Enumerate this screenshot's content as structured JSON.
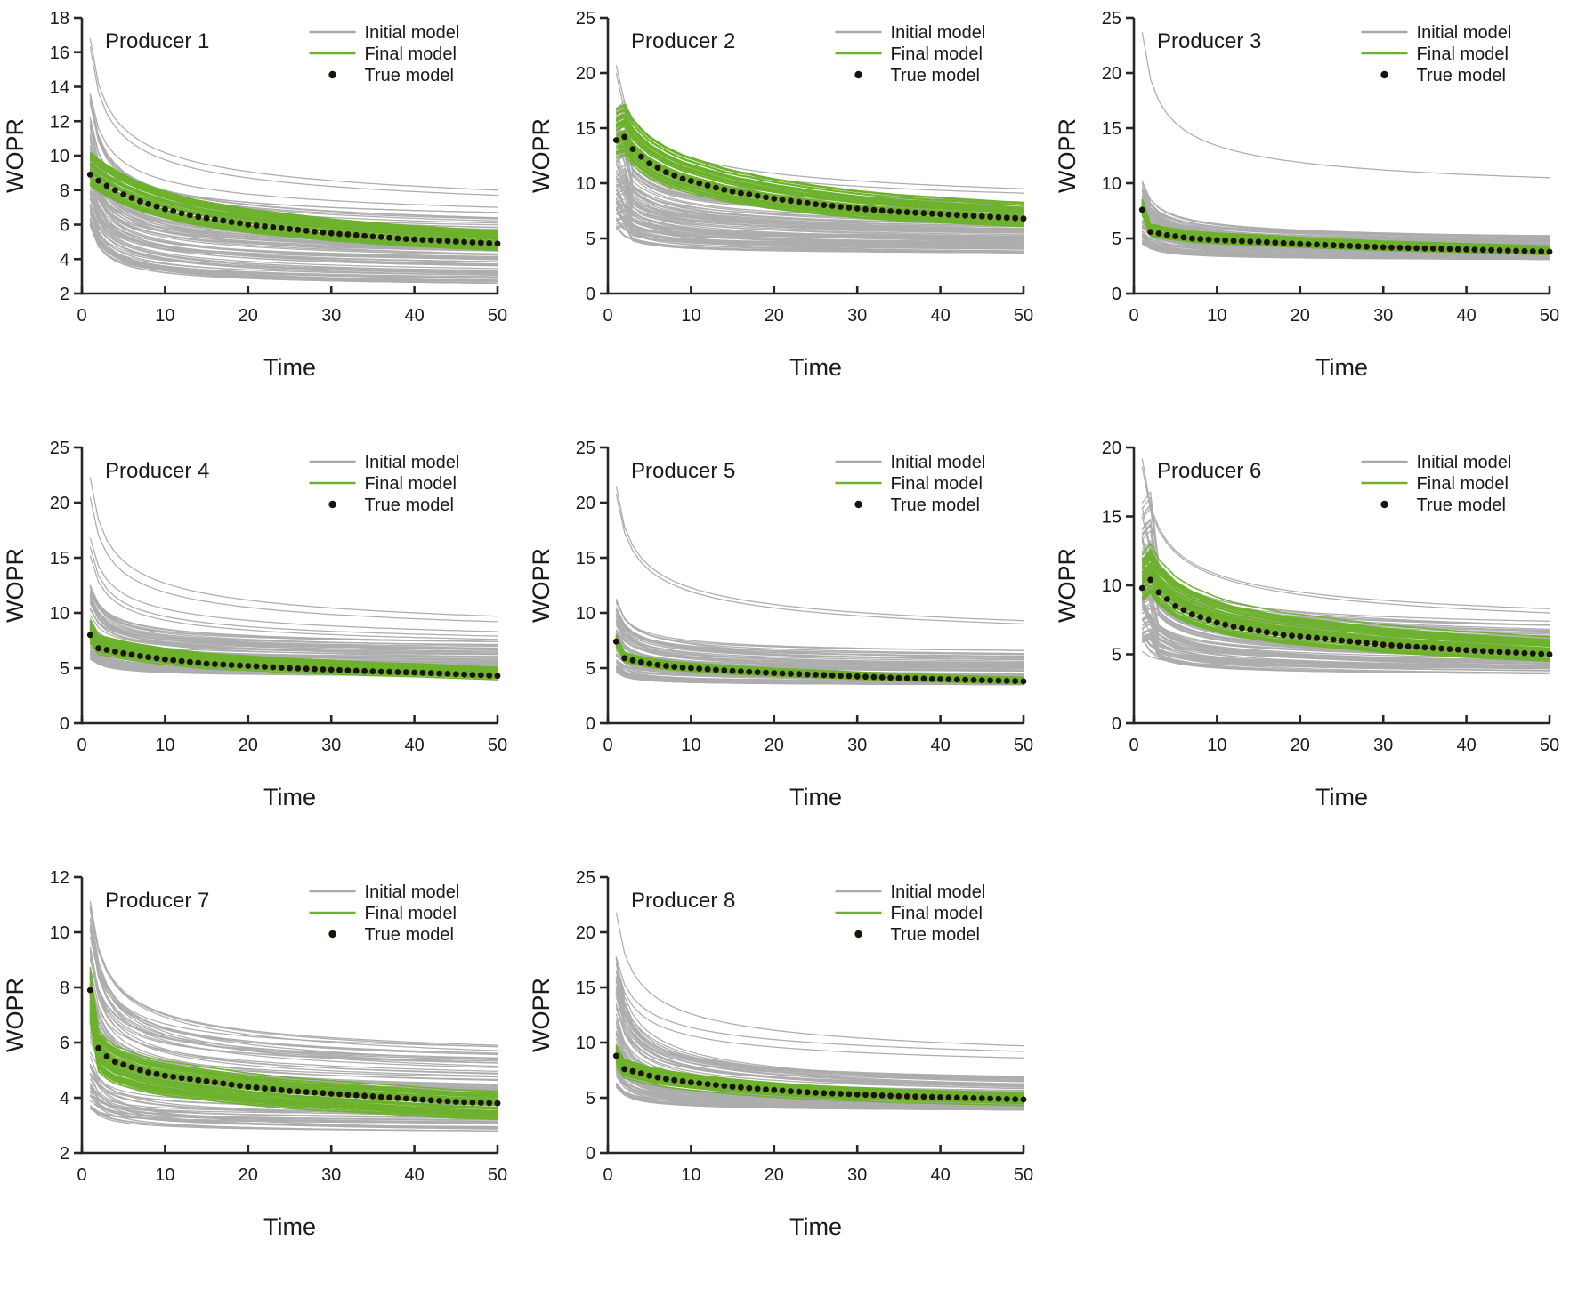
{
  "page": {
    "background": "#ffffff"
  },
  "colors": {
    "initial_model": "#a9a9a9",
    "final_model": "#6db22c",
    "true_model": "#1c130b",
    "axis": "#2a2521",
    "text": "#1a1a1a"
  },
  "legend_labels": [
    "Initial model",
    "Final model",
    "True model"
  ],
  "axis_labels": {
    "xlabel": "Time",
    "ylabel": "WOPR"
  },
  "chart_data": [
    {
      "type": "line",
      "title": "Producer 1",
      "xlabel": "Time",
      "ylabel": "WOPR",
      "xlim": [
        0,
        50
      ],
      "xticks": [
        0,
        10,
        20,
        30,
        40,
        50
      ],
      "ylim": [
        2,
        18
      ],
      "yticks": [
        2,
        4,
        6,
        8,
        10,
        12,
        14,
        16,
        18
      ],
      "grid": false,
      "legend_position": "top-right",
      "legend": [
        "Initial model",
        "Final model",
        "True model"
      ],
      "true_model": {
        "x_start": 1,
        "x_step": 1,
        "values": [
          8.9,
          8.55,
          8.25,
          8.0,
          7.75,
          7.55,
          7.35,
          7.2,
          7.05,
          6.9,
          6.78,
          6.65,
          6.55,
          6.45,
          6.38,
          6.3,
          6.23,
          6.15,
          6.08,
          6.0,
          5.95,
          5.9,
          5.85,
          5.8,
          5.75,
          5.7,
          5.65,
          5.6,
          5.55,
          5.5,
          5.46,
          5.43,
          5.39,
          5.35,
          5.31,
          5.28,
          5.24,
          5.2,
          5.17,
          5.15,
          5.12,
          5.1,
          5.07,
          5.05,
          5.02,
          5.0,
          4.97,
          4.95,
          4.92,
          4.9
        ]
      },
      "initial_ensemble": {
        "count": 85,
        "start_range": [
          5.9,
          13.6
        ],
        "end_range": [
          2.6,
          6.7
        ],
        "outliers": [
          [
            16.8,
            8.0
          ],
          [
            16.3,
            7.7
          ],
          [
            13.6,
            7.0
          ]
        ],
        "peak": false,
        "seed": 101
      },
      "final_ensemble": {
        "count": 45,
        "scale_range": [
          0.93,
          1.16
        ],
        "seed": 201
      }
    },
    {
      "type": "line",
      "title": "Producer 2",
      "xlabel": "Time",
      "ylabel": "WOPR",
      "xlim": [
        0,
        50
      ],
      "xticks": [
        0,
        10,
        20,
        30,
        40,
        50
      ],
      "ylim": [
        0,
        25
      ],
      "yticks": [
        0,
        5,
        10,
        15,
        20,
        25
      ],
      "grid": false,
      "legend_position": "top-right",
      "legend": [
        "Initial model",
        "Final model",
        "True model"
      ],
      "true_model": {
        "x_start": 1,
        "x_step": 1,
        "values": [
          13.9,
          14.2,
          13.1,
          12.4,
          11.8,
          11.4,
          11.0,
          10.7,
          10.4,
          10.2,
          10.0,
          9.8,
          9.6,
          9.4,
          9.25,
          9.1,
          9.0,
          8.85,
          8.72,
          8.6,
          8.5,
          8.4,
          8.3,
          8.2,
          8.1,
          8.02,
          7.94,
          7.86,
          7.78,
          7.7,
          7.64,
          7.58,
          7.52,
          7.46,
          7.4,
          7.36,
          7.32,
          7.28,
          7.24,
          7.2,
          7.16,
          7.12,
          7.08,
          7.04,
          7.0,
          6.96,
          6.92,
          6.88,
          6.84,
          6.8
        ]
      },
      "initial_ensemble": {
        "count": 85,
        "start_range": [
          5.9,
          17.6
        ],
        "end_range": [
          3.7,
          8.3
        ],
        "outliers": [
          [
            20.7,
            9.5
          ],
          [
            20.0,
            9.1
          ]
        ],
        "peak": true,
        "seed": 102
      },
      "final_ensemble": {
        "count": 45,
        "scale_range": [
          0.87,
          1.21
        ],
        "seed": 202
      }
    },
    {
      "type": "line",
      "title": "Producer 3",
      "xlabel": "Time",
      "ylabel": "WOPR",
      "xlim": [
        0,
        50
      ],
      "xticks": [
        0,
        10,
        20,
        30,
        40,
        50
      ],
      "ylim": [
        0,
        25
      ],
      "yticks": [
        0,
        5,
        10,
        15,
        20,
        25
      ],
      "grid": false,
      "legend_position": "top-right",
      "legend": [
        "Initial model",
        "Final model",
        "True model"
      ],
      "true_model": {
        "x_start": 1,
        "x_step": 1,
        "values": [
          7.6,
          5.6,
          5.45,
          5.3,
          5.2,
          5.1,
          5.0,
          4.95,
          4.9,
          4.85,
          4.82,
          4.78,
          4.75,
          4.72,
          4.7,
          4.66,
          4.62,
          4.58,
          4.54,
          4.5,
          4.47,
          4.44,
          4.41,
          4.38,
          4.35,
          4.32,
          4.29,
          4.26,
          4.23,
          4.2,
          4.18,
          4.16,
          4.14,
          4.12,
          4.1,
          4.08,
          4.06,
          4.04,
          4.02,
          4.0,
          3.98,
          3.96,
          3.94,
          3.92,
          3.9,
          3.88,
          3.86,
          3.84,
          3.82,
          3.8
        ]
      },
      "initial_ensemble": {
        "count": 85,
        "start_range": [
          4.5,
          10.5
        ],
        "end_range": [
          3.1,
          5.6
        ],
        "outliers": [
          [
            23.7,
            10.5
          ]
        ],
        "peak": false,
        "seed": 103
      },
      "final_ensemble": {
        "count": 45,
        "scale_range": [
          0.94,
          1.12
        ],
        "seed": 203
      }
    },
    {
      "type": "line",
      "title": "Producer 4",
      "xlabel": "Time",
      "ylabel": "WOPR",
      "xlim": [
        0,
        50
      ],
      "xticks": [
        0,
        10,
        20,
        30,
        40,
        50
      ],
      "ylim": [
        0,
        25
      ],
      "yticks": [
        0,
        5,
        10,
        15,
        20,
        25
      ],
      "grid": false,
      "legend_position": "top-right",
      "legend": [
        "Initial model",
        "Final model",
        "True model"
      ],
      "true_model": {
        "x_start": 1,
        "x_step": 1,
        "values": [
          8.0,
          6.8,
          6.65,
          6.5,
          6.35,
          6.22,
          6.1,
          6.0,
          5.9,
          5.8,
          5.72,
          5.64,
          5.56,
          5.48,
          5.4,
          5.36,
          5.32,
          5.28,
          5.24,
          5.2,
          5.16,
          5.12,
          5.08,
          5.04,
          5.0,
          4.97,
          4.94,
          4.91,
          4.88,
          4.85,
          4.82,
          4.79,
          4.76,
          4.73,
          4.7,
          4.68,
          4.66,
          4.64,
          4.62,
          4.6,
          4.57,
          4.54,
          4.51,
          4.48,
          4.45,
          4.42,
          4.39,
          4.36,
          4.33,
          4.3
        ]
      },
      "initial_ensemble": {
        "count": 85,
        "start_range": [
          5.8,
          12.6
        ],
        "end_range": [
          4.3,
          7.4
        ],
        "outliers": [
          [
            22.3,
            9.7
          ],
          [
            20.5,
            9.2
          ],
          [
            16.8,
            8.3
          ],
          [
            16.0,
            7.9
          ],
          [
            15.2,
            7.6
          ]
        ],
        "peak": false,
        "seed": 104
      },
      "final_ensemble": {
        "count": 45,
        "scale_range": [
          0.92,
          1.17
        ],
        "seed": 204
      }
    },
    {
      "type": "line",
      "title": "Producer 5",
      "xlabel": "Time",
      "ylabel": "WOPR",
      "xlim": [
        0,
        50
      ],
      "xticks": [
        0,
        10,
        20,
        30,
        40,
        50
      ],
      "ylim": [
        0,
        25
      ],
      "yticks": [
        0,
        5,
        10,
        15,
        20,
        25
      ],
      "grid": false,
      "legend_position": "top-right",
      "legend": [
        "Initial model",
        "Final model",
        "True model"
      ],
      "true_model": {
        "x_start": 1,
        "x_step": 1,
        "values": [
          7.4,
          5.9,
          5.7,
          5.55,
          5.4,
          5.3,
          5.2,
          5.12,
          5.06,
          5.0,
          4.95,
          4.9,
          4.85,
          4.8,
          4.75,
          4.71,
          4.67,
          4.63,
          4.59,
          4.55,
          4.52,
          4.49,
          4.46,
          4.43,
          4.4,
          4.37,
          4.34,
          4.31,
          4.28,
          4.25,
          4.22,
          4.19,
          4.16,
          4.13,
          4.1,
          4.08,
          4.06,
          4.04,
          4.02,
          4.0,
          3.98,
          3.96,
          3.94,
          3.92,
          3.9,
          3.88,
          3.86,
          3.84,
          3.82,
          3.8
        ]
      },
      "initial_ensemble": {
        "count": 85,
        "start_range": [
          4.6,
          11.8
        ],
        "end_range": [
          3.5,
          6.6
        ],
        "outliers": [
          [
            21.5,
            9.3
          ],
          [
            20.8,
            9.0
          ]
        ],
        "peak": false,
        "seed": 105
      },
      "final_ensemble": {
        "count": 45,
        "scale_range": [
          0.94,
          1.08
        ],
        "seed": 205
      }
    },
    {
      "type": "line",
      "title": "Producer 6",
      "xlabel": "Time",
      "ylabel": "WOPR",
      "xlim": [
        0,
        50
      ],
      "xticks": [
        0,
        10,
        20,
        30,
        40,
        50
      ],
      "ylim": [
        0,
        20
      ],
      "yticks": [
        0,
        5,
        10,
        15,
        20
      ],
      "grid": false,
      "legend_position": "top-right",
      "legend": [
        "Initial model",
        "Final model",
        "True model"
      ],
      "true_model": {
        "x_start": 1,
        "x_step": 1,
        "values": [
          9.8,
          10.4,
          9.5,
          9.0,
          8.5,
          8.2,
          7.9,
          7.7,
          7.5,
          7.3,
          7.15,
          7.0,
          6.9,
          6.8,
          6.7,
          6.6,
          6.5,
          6.4,
          6.35,
          6.3,
          6.24,
          6.18,
          6.12,
          6.06,
          6.0,
          5.94,
          5.88,
          5.82,
          5.76,
          5.7,
          5.66,
          5.62,
          5.58,
          5.54,
          5.5,
          5.46,
          5.42,
          5.38,
          5.34,
          5.3,
          5.27,
          5.24,
          5.21,
          5.18,
          5.15,
          5.12,
          5.09,
          5.06,
          5.03,
          5.0
        ]
      },
      "initial_ensemble": {
        "count": 85,
        "start_range": [
          6.0,
          17.5
        ],
        "end_range": [
          3.6,
          7.4
        ],
        "outliers": [
          [
            19.2,
            8.3
          ],
          [
            18.6,
            8.0
          ],
          [
            5.2,
            4.0
          ]
        ],
        "peak": true,
        "seed": 106
      },
      "final_ensemble": {
        "count": 45,
        "scale_range": [
          0.9,
          1.25
        ],
        "seed": 206
      }
    },
    {
      "type": "line",
      "title": "Producer 7",
      "xlabel": "Time",
      "ylabel": "WOPR",
      "xlim": [
        0,
        50
      ],
      "xticks": [
        0,
        10,
        20,
        30,
        40,
        50
      ],
      "ylim": [
        2,
        12
      ],
      "yticks": [
        2,
        4,
        6,
        8,
        10,
        12
      ],
      "grid": false,
      "legend_position": "top-right",
      "legend": [
        "Initial model",
        "Final model",
        "True model"
      ],
      "true_model": {
        "x_start": 1,
        "x_step": 1,
        "values": [
          7.9,
          5.8,
          5.5,
          5.3,
          5.2,
          5.1,
          5.0,
          4.92,
          4.86,
          4.8,
          4.76,
          4.72,
          4.68,
          4.64,
          4.6,
          4.56,
          4.52,
          4.48,
          4.44,
          4.4,
          4.37,
          4.34,
          4.31,
          4.28,
          4.25,
          4.23,
          4.21,
          4.19,
          4.17,
          4.15,
          4.13,
          4.11,
          4.09,
          4.07,
          4.05,
          4.03,
          4.01,
          3.99,
          3.97,
          3.95,
          3.93,
          3.91,
          3.89,
          3.87,
          3.85,
          3.84,
          3.83,
          3.82,
          3.81,
          3.8
        ]
      },
      "initial_ensemble": {
        "count": 75,
        "start_range": [
          3.6,
          11.4
        ],
        "end_range": [
          2.8,
          5.9
        ],
        "outliers": [
          [
            5.2,
            2.9
          ]
        ],
        "peak": false,
        "seed": 107
      },
      "final_ensemble": {
        "count": 45,
        "scale_range": [
          0.86,
          1.1
        ],
        "seed": 207
      }
    },
    {
      "type": "line",
      "title": "Producer 8",
      "xlabel": "Time",
      "ylabel": "WOPR",
      "xlim": [
        0,
        50
      ],
      "xticks": [
        0,
        10,
        20,
        30,
        40,
        50
      ],
      "ylim": [
        0,
        25
      ],
      "yticks": [
        0,
        5,
        10,
        15,
        20,
        25
      ],
      "grid": false,
      "legend_position": "top-right",
      "legend": [
        "Initial model",
        "Final model",
        "True model"
      ],
      "true_model": {
        "x_start": 1,
        "x_step": 1,
        "values": [
          8.8,
          7.6,
          7.4,
          7.2,
          7.0,
          6.85,
          6.7,
          6.6,
          6.5,
          6.4,
          6.32,
          6.24,
          6.16,
          6.08,
          6.0,
          5.94,
          5.88,
          5.82,
          5.76,
          5.7,
          5.65,
          5.6,
          5.55,
          5.5,
          5.45,
          5.42,
          5.39,
          5.36,
          5.33,
          5.3,
          5.27,
          5.24,
          5.21,
          5.18,
          5.15,
          5.13,
          5.11,
          5.09,
          5.07,
          5.05,
          5.03,
          5.01,
          4.99,
          4.97,
          4.95,
          4.93,
          4.91,
          4.89,
          4.87,
          4.85
        ]
      },
      "initial_ensemble": {
        "count": 80,
        "start_range": [
          5.9,
          17.8
        ],
        "end_range": [
          3.9,
          7.0
        ],
        "outliers": [
          [
            21.8,
            9.7
          ],
          [
            17.8,
            9.2
          ],
          [
            17.2,
            8.6
          ]
        ],
        "peak": false,
        "seed": 108
      },
      "final_ensemble": {
        "count": 45,
        "scale_range": [
          0.9,
          1.12
        ],
        "seed": 208
      }
    }
  ]
}
